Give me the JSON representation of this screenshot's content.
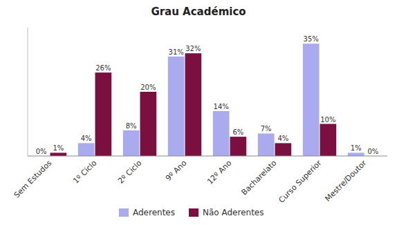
{
  "chart_data": {
    "type": "bar",
    "title": "Grau Académico",
    "categories": [
      "Sem Estudos",
      "1º Ciclo",
      "2º Ciclo",
      "9º Ano",
      "12º Ano",
      "Bacharelato",
      "Curso Superior",
      "Mestre/Doutor"
    ],
    "series": [
      {
        "name": "Aderentes",
        "color": "#AAAAEE",
        "values": [
          0,
          4,
          8,
          31,
          14,
          7,
          35,
          1
        ],
        "value_labels": [
          "0%",
          "4%",
          "8%",
          "31%",
          "14%",
          "7%",
          "35%",
          "1%"
        ]
      },
      {
        "name": "Não Aderentes",
        "color": "#7B1040",
        "values": [
          1,
          26,
          20,
          32,
          6,
          4,
          10,
          0
        ],
        "value_labels": [
          "1%",
          "26%",
          "20%",
          "32%",
          "6%",
          "4%",
          "10%",
          "0%"
        ]
      }
    ],
    "ylim": [
      0,
      40
    ],
    "yticks": [],
    "tick_labels": "x",
    "data_labels": true,
    "grid": false,
    "legend": "bottom"
  }
}
